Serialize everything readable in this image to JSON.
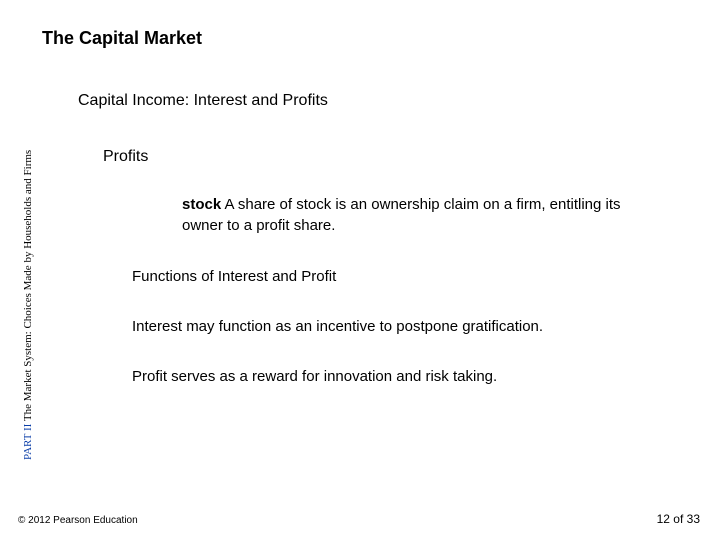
{
  "title": "The Capital Market",
  "subtitle": "Capital Income: Interest and Profits",
  "heading3": "Profits",
  "definition": {
    "term": "stock",
    "text": "  A share of stock is an ownership claim on a firm, entitling its owner to a profit share."
  },
  "heading4": "Functions of Interest and Profit",
  "body1": "Interest may function as an incentive to postpone gratification.",
  "body2": "Profit serves as a reward for innovation and risk taking.",
  "sidebar": {
    "part": "PART II ",
    "rest": "The Market System: Choices Made by Households and Firms"
  },
  "copyright": "© 2012 Pearson Education",
  "page_current": "12",
  "page_sep": " of ",
  "page_total": "33"
}
